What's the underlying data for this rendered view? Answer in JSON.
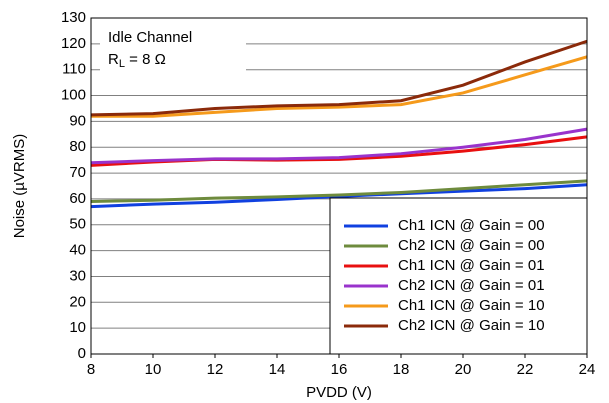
{
  "chart_data": {
    "type": "line",
    "xlabel": "PVDD (V)",
    "ylabel": "Noise (µVRMS)",
    "annotation": {
      "line1": "Idle Channel",
      "base": "R",
      "sub": "L",
      "rest": " = 8 Ω"
    },
    "x": [
      8,
      10,
      12,
      14,
      16,
      18,
      20,
      22,
      24
    ],
    "series": [
      {
        "name": "Ch1 ICN @ Gain = 00",
        "color": "#1040e0",
        "values": [
          57,
          58,
          58.7,
          59.8,
          61,
          62,
          63,
          64,
          65.5
        ]
      },
      {
        "name": "Ch2 ICN @ Gain = 00",
        "color": "#6e8b3d",
        "values": [
          59,
          59.5,
          60.3,
          60.8,
          61.5,
          62.5,
          64,
          65.5,
          67
        ]
      },
      {
        "name": "Ch1 ICN @ Gain = 01",
        "color": "#e81010",
        "values": [
          73,
          74.3,
          75.3,
          75,
          75.3,
          76.5,
          78.5,
          81,
          84
        ]
      },
      {
        "name": "Ch2 ICN @ Gain = 01",
        "color": "#9933cc",
        "values": [
          74,
          74.8,
          75.5,
          75.5,
          76,
          77.5,
          80,
          83,
          87
        ]
      },
      {
        "name": "Ch1 ICN @ Gain = 10",
        "color": "#f59a1b",
        "values": [
          92,
          92,
          93.5,
          95,
          95.5,
          96.5,
          101,
          108,
          115
        ]
      },
      {
        "name": "Ch2 ICN @ Gain = 10",
        "color": "#8b2a0a",
        "values": [
          92.5,
          93,
          95,
          96,
          96.5,
          98,
          104,
          113,
          121
        ]
      }
    ],
    "xlim": [
      8,
      24
    ],
    "xticks": [
      8,
      10,
      12,
      14,
      16,
      18,
      20,
      22,
      24
    ],
    "ylim": [
      0,
      130
    ],
    "yticks": [
      0,
      10,
      20,
      30,
      40,
      50,
      60,
      70,
      80,
      90,
      100,
      110,
      120,
      130
    ],
    "grid": true,
    "legend": "lower right"
  }
}
